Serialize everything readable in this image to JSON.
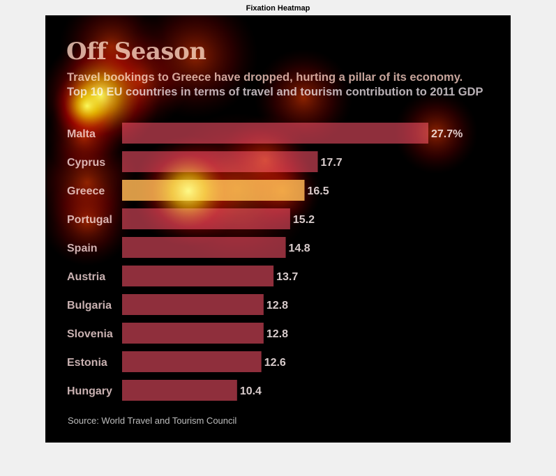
{
  "window": {
    "title": "Fixation Heatmap"
  },
  "figure": {
    "title": "Off Season",
    "subtitle_line1": "Travel bookings to Greece have dropped, hurting a pillar of its economy.",
    "subtitle_line2": "Top 10 EU countries in terms of travel and tourism contribution to 2011 GDP",
    "source": "Source: World Travel and Tourism Council"
  },
  "colors": {
    "bar": "#8f2f3c",
    "bar_highlight": "#d79a47",
    "label": "#c9b1b1",
    "value": "#d8cccc",
    "panel_bg": "#000000"
  },
  "chart_data": {
    "type": "bar",
    "orientation": "horizontal",
    "title": "Off Season",
    "categories": [
      "Malta",
      "Cyprus",
      "Greece",
      "Portugal",
      "Spain",
      "Austria",
      "Bulgaria",
      "Slovenia",
      "Estonia",
      "Hungary"
    ],
    "values": [
      27.7,
      17.7,
      16.5,
      15.2,
      14.8,
      13.7,
      12.8,
      12.8,
      12.6,
      10.4
    ],
    "value_labels": [
      "27.7%",
      "17.7",
      "16.5",
      "15.2",
      "14.8",
      "13.7",
      "12.8",
      "12.8",
      "12.6",
      "10.4"
    ],
    "highlight": "Greece",
    "xlabel": "",
    "ylabel": "",
    "xlim": [
      0,
      27.7
    ],
    "grid": false,
    "legend": "none"
  }
}
